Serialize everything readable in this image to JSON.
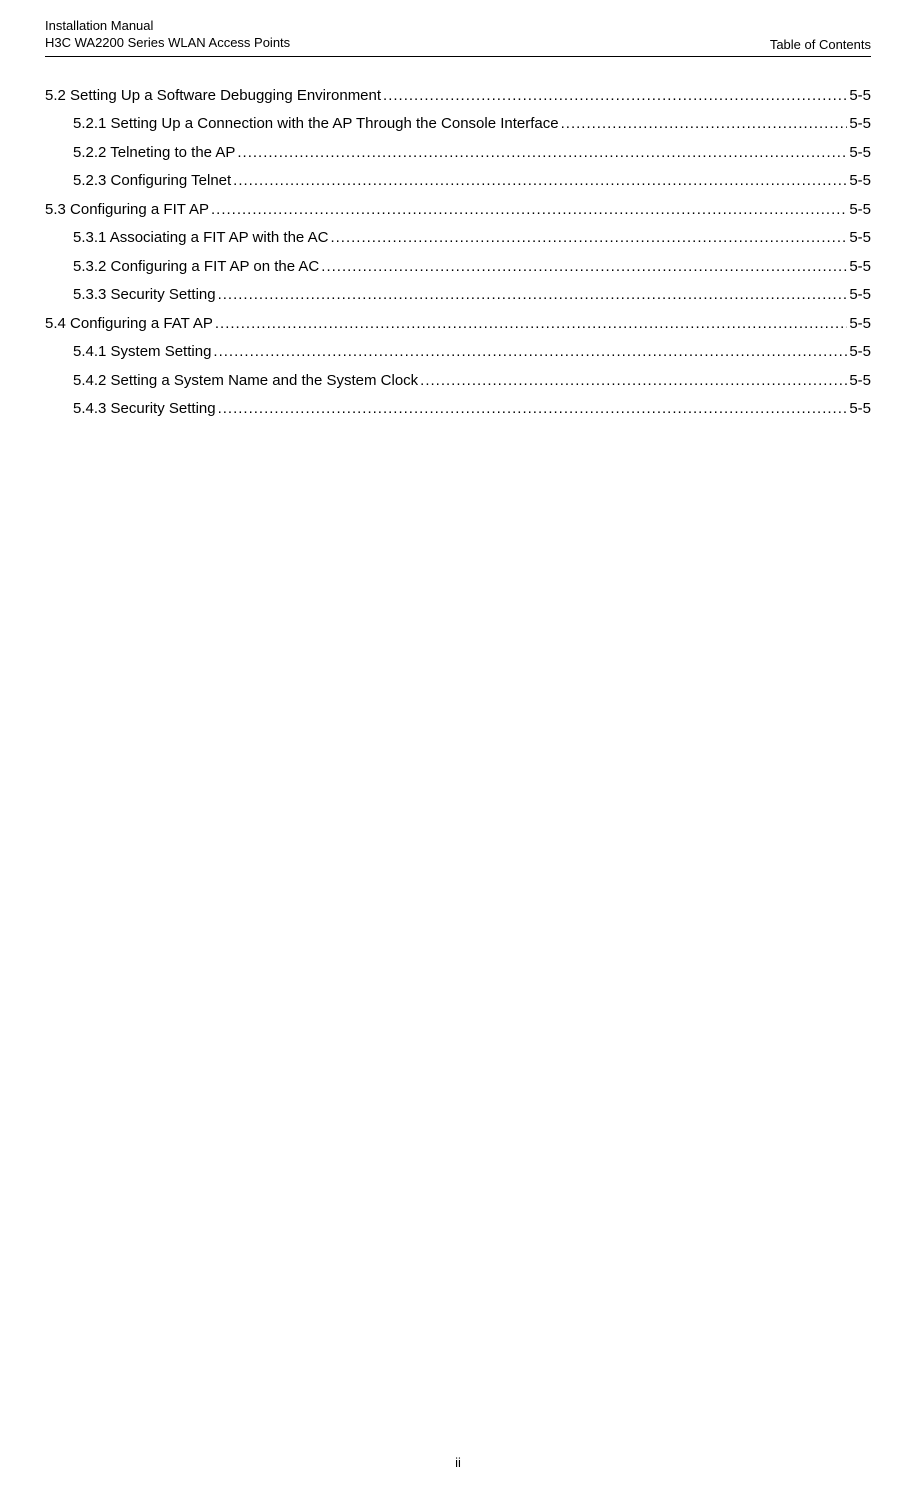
{
  "header": {
    "line1": "Installation Manual",
    "line2": "H3C WA2200 Series WLAN Access Points",
    "right": "Table of Contents"
  },
  "toc": [
    {
      "level": 1,
      "title": "5.2 Setting Up a Software Debugging Environment",
      "page": "5-5"
    },
    {
      "level": 2,
      "title": "5.2.1 Setting Up a Connection with the AP Through the Console Interface",
      "page": "5-5"
    },
    {
      "level": 2,
      "title": "5.2.2 Telneting to the AP",
      "page": "5-5"
    },
    {
      "level": 2,
      "title": "5.2.3 Configuring Telnet",
      "page": "5-5"
    },
    {
      "level": 1,
      "title": "5.3 Configuring a FIT AP",
      "page": "5-5"
    },
    {
      "level": 2,
      "title": "5.3.1 Associating a FIT AP with the AC",
      "page": "5-5"
    },
    {
      "level": 2,
      "title": "5.3.2 Configuring a FIT AP on the AC",
      "page": "5-5"
    },
    {
      "level": 2,
      "title": "5.3.3 Security Setting",
      "page": "5-5"
    },
    {
      "level": 1,
      "title": "5.4 Configuring a FAT AP",
      "page": "5-5"
    },
    {
      "level": 2,
      "title": "5.4.1 System Setting",
      "page": "5-5"
    },
    {
      "level": 2,
      "title": "5.4.2 Setting a System Name and the System Clock",
      "page": "5-5"
    },
    {
      "level": 2,
      "title": "5.4.3 Security Setting",
      "page": "5-5"
    }
  ],
  "footer": {
    "pageNumber": "ii"
  }
}
